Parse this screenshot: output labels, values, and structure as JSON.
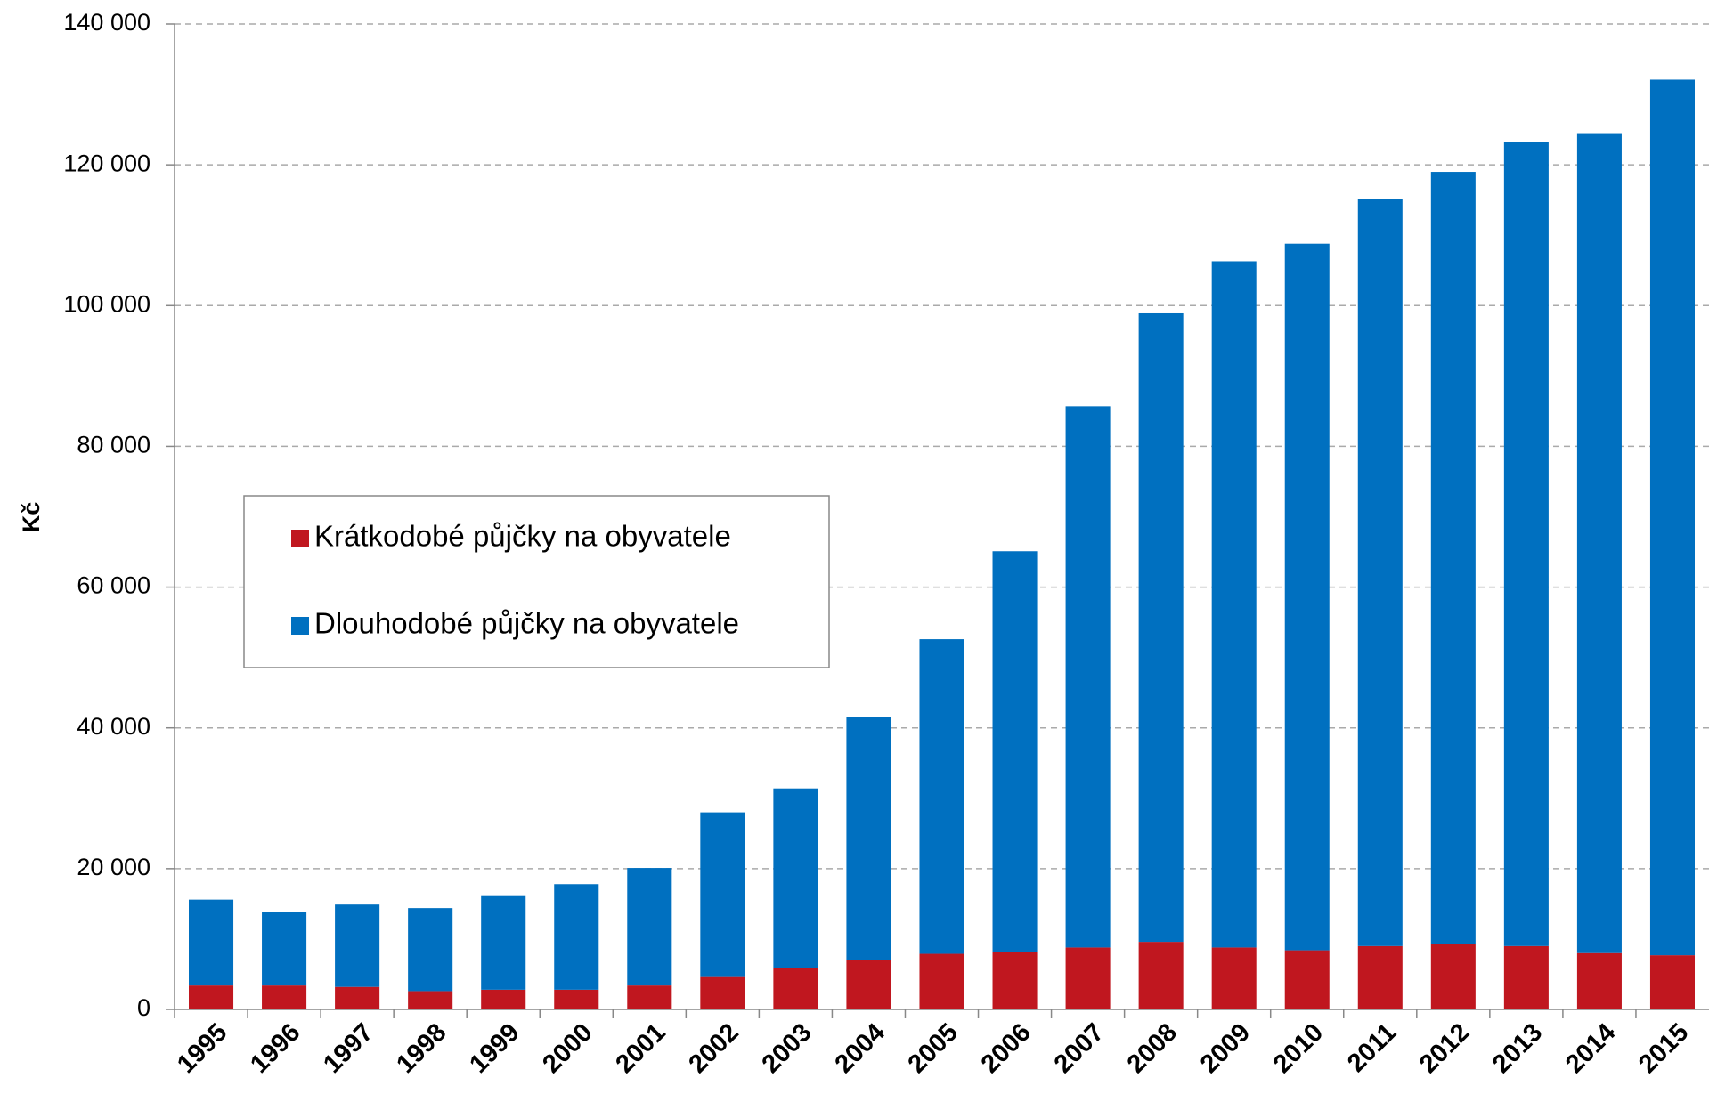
{
  "chart_data": {
    "type": "stacked_bar",
    "y_label": "Kč",
    "categories": [
      "1995",
      "1996",
      "1997",
      "1998",
      "1999",
      "2000",
      "2001",
      "2002",
      "2003",
      "2004",
      "2005",
      "2006",
      "2007",
      "2008",
      "2009",
      "2010",
      "2011",
      "2012",
      "2013",
      "2014",
      "2015"
    ],
    "series": [
      {
        "name": "Krátkodobé půjčky na obyvatele",
        "color": "#c0171f",
        "values": [
          3400,
          3400,
          3200,
          2600,
          2800,
          2800,
          3400,
          4600,
          5900,
          7000,
          7900,
          8200,
          8800,
          9600,
          8800,
          8400,
          9000,
          9300,
          9000,
          8000,
          7700
        ]
      },
      {
        "name": "Dlouhodobé půjčky na obyvatele",
        "color": "#0070c0",
        "values": [
          12200,
          10400,
          11700,
          11800,
          13300,
          15000,
          16700,
          23400,
          25500,
          34600,
          44700,
          56900,
          76900,
          89300,
          97500,
          100400,
          106100,
          109700,
          114300,
          116500,
          124400
        ]
      }
    ],
    "ylim": [
      0,
      140000
    ],
    "yticks": [
      0,
      {
        "value": 20000,
        "label": "20 000"
      },
      {
        "value": 40000,
        "label": "40 000"
      },
      {
        "value": 60000,
        "label": "60 000"
      },
      {
        "value": 80000,
        "label": "80 000"
      },
      {
        "value": 100000,
        "label": "100 000"
      },
      {
        "value": 120000,
        "label": "120 000"
      },
      {
        "value": 140000,
        "label": "140 000"
      }
    ],
    "grid": true
  }
}
